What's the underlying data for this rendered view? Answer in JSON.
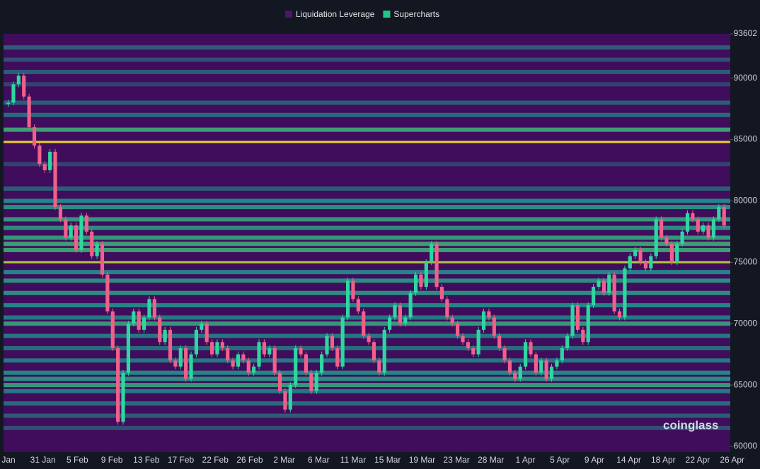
{
  "chart_data": {
    "type": "heatmap",
    "watermark": "coinglass",
    "series": [
      {
        "name": "Liquidation Leverage",
        "color": "#4a1570"
      },
      {
        "name": "Supercharts",
        "color": "#22c78a"
      }
    ],
    "categories": [
      "Jan",
      "31 Jan",
      "5 Feb",
      "9 Feb",
      "13 Feb",
      "17 Feb",
      "22 Feb",
      "26 Feb",
      "2 Mar",
      "6 Mar",
      "11 Mar",
      "15 Mar",
      "19 Mar",
      "23 Mar",
      "28 Mar",
      "1 Apr",
      "5 Apr",
      "9 Apr",
      "14 Apr",
      "18 Apr",
      "22 Apr",
      "26 Apr"
    ],
    "ylim": [
      59540,
      93602
    ],
    "yticks": [
      60000,
      65000,
      70000,
      75000,
      80000,
      85000,
      90000,
      93602
    ],
    "price": [
      88000,
      89500,
      90200,
      88500,
      86000,
      84500,
      83000,
      82500,
      84000,
      79500,
      78500,
      77000,
      78000,
      76000,
      78800,
      77500,
      75500,
      76500,
      74000,
      71000,
      68000,
      62000,
      66000,
      70000,
      71000,
      69500,
      70500,
      72000,
      70500,
      68500,
      69500,
      67000,
      66500,
      68000,
      65500,
      67500,
      69500,
      70000,
      68500,
      67500,
      68500,
      68000,
      67000,
      66500,
      67500,
      67000,
      66000,
      66500,
      68500,
      67500,
      68000,
      66000,
      64500,
      63000,
      65000,
      68000,
      67500,
      66000,
      64500,
      66000,
      67500,
      69000,
      68000,
      66500,
      70500,
      73500,
      72000,
      71000,
      69000,
      68500,
      67000,
      66000,
      69500,
      70500,
      71500,
      70000,
      70500,
      72500,
      74000,
      73000,
      75000,
      76500,
      73000,
      72000,
      70500,
      70000,
      69000,
      68500,
      68000,
      67500,
      69500,
      71000,
      70500,
      69000,
      68000,
      67000,
      66000,
      65500,
      66500,
      68500,
      67500,
      66000,
      67000,
      65500,
      66500,
      67000,
      68000,
      69000,
      71500,
      69500,
      68500,
      71500,
      73000,
      73500,
      72500,
      74000,
      71000,
      70500,
      74500,
      75500,
      76000,
      75000,
      74500,
      75500,
      78500,
      77000,
      76500,
      75000,
      76500,
      77500,
      79000,
      78500,
      77500,
      78000,
      77000,
      78500,
      79500,
      78000
    ],
    "levels": [
      {
        "price": 92500,
        "strength": 0.3
      },
      {
        "price": 91500,
        "strength": 0.25
      },
      {
        "price": 90500,
        "strength": 0.3
      },
      {
        "price": 89500,
        "strength": 0.2
      },
      {
        "price": 88000,
        "strength": 0.3
      },
      {
        "price": 87000,
        "strength": 0.35
      },
      {
        "price": 85800,
        "strength": 0.6
      },
      {
        "price": 84800,
        "strength": 1.0
      },
      {
        "price": 83000,
        "strength": 0.2
      },
      {
        "price": 81000,
        "strength": 0.3
      },
      {
        "price": 80000,
        "strength": 0.45
      },
      {
        "price": 79500,
        "strength": 0.5
      },
      {
        "price": 78500,
        "strength": 0.55
      },
      {
        "price": 77800,
        "strength": 0.5
      },
      {
        "price": 77000,
        "strength": 0.55
      },
      {
        "price": 76500,
        "strength": 0.6
      },
      {
        "price": 76000,
        "strength": 0.6
      },
      {
        "price": 75000,
        "strength": 0.9
      },
      {
        "price": 74200,
        "strength": 0.45
      },
      {
        "price": 73500,
        "strength": 0.5
      },
      {
        "price": 72500,
        "strength": 0.5
      },
      {
        "price": 71500,
        "strength": 0.45
      },
      {
        "price": 70500,
        "strength": 0.4
      },
      {
        "price": 70000,
        "strength": 0.55
      },
      {
        "price": 69000,
        "strength": 0.4
      },
      {
        "price": 68000,
        "strength": 0.35
      },
      {
        "price": 67000,
        "strength": 0.4
      },
      {
        "price": 66000,
        "strength": 0.45
      },
      {
        "price": 65500,
        "strength": 0.5
      },
      {
        "price": 65000,
        "strength": 0.55
      },
      {
        "price": 64500,
        "strength": 0.4
      },
      {
        "price": 63500,
        "strength": 0.35
      },
      {
        "price": 62500,
        "strength": 0.3
      },
      {
        "price": 61500,
        "strength": 0.25
      }
    ]
  }
}
